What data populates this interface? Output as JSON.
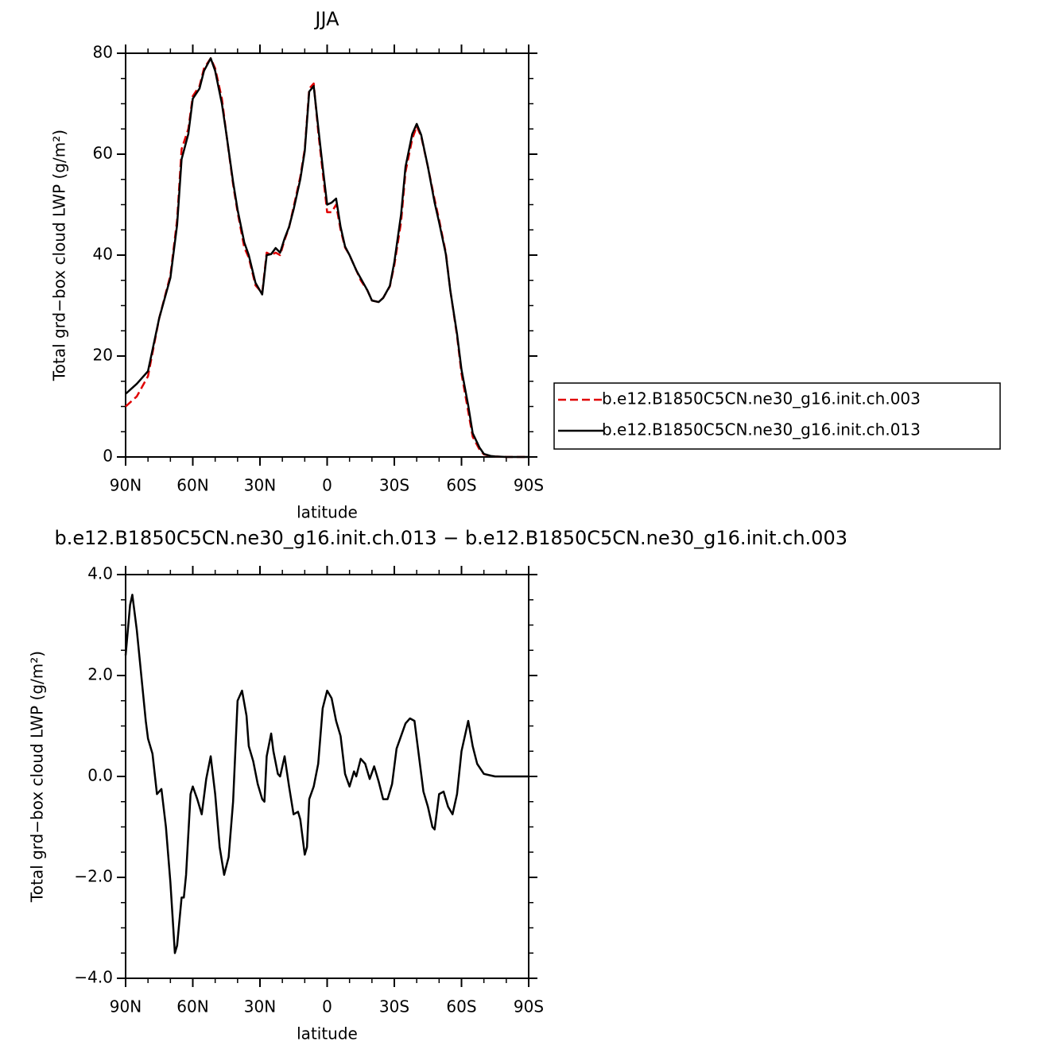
{
  "chart_data": [
    {
      "type": "line",
      "title": "JJA",
      "xlabel": "latitude",
      "ylabel": "Total grd−box cloud LWP (g/m²)",
      "x": [
        90,
        85,
        80,
        75,
        70,
        67,
        65,
        62,
        60,
        57,
        55,
        52,
        50,
        47,
        45,
        42,
        40,
        37,
        35,
        32,
        29,
        27,
        25,
        23,
        21,
        19,
        17,
        15,
        12,
        10,
        8,
        6,
        4,
        2,
        0,
        -2,
        -4,
        -6,
        -8,
        -10,
        -13,
        -15,
        -18,
        -20,
        -23,
        -25,
        -28,
        -30,
        -33,
        -35,
        -38,
        -40,
        -42,
        -45,
        -48,
        -50,
        -53,
        -55,
        -58,
        -60,
        -63,
        -65,
        -68,
        -70,
        -73,
        -75,
        -80,
        -85,
        -90
      ],
      "series": [
        {
          "name": "b.e12.B1850C5CN.ne30_g16.init.ch.003",
          "color": "#e00000",
          "style": "dashed",
          "values": [
            10,
            12,
            16,
            27.5,
            36,
            47,
            61,
            65,
            71.5,
            73.5,
            77,
            79,
            77,
            71,
            64,
            54,
            48.5,
            41.5,
            39.5,
            34,
            32.5,
            40.5,
            40,
            40.5,
            40,
            43,
            45.5,
            49.5,
            55.5,
            61,
            73,
            74,
            64.5,
            56.5,
            48.5,
            48.5,
            50,
            45,
            41.5,
            40,
            37,
            35,
            33,
            31,
            30.7,
            31.5,
            33.8,
            38,
            46.5,
            56.5,
            63,
            65.5,
            63.5,
            57.5,
            51,
            47,
            40.5,
            33,
            24,
            16.5,
            9,
            4,
            1.5,
            0.5,
            0.2,
            0.1,
            0,
            0,
            0
          ]
        },
        {
          "name": "b.e12.B1850C5CN.ne30_g16.init.ch.013",
          "color": "#000000",
          "style": "solid",
          "values": [
            12.5,
            14.5,
            17,
            27.5,
            35.5,
            46,
            59,
            64,
            71,
            73,
            76.5,
            79,
            76.5,
            70,
            64,
            54.5,
            49,
            42.5,
            40,
            34.5,
            32.2,
            40,
            40.2,
            41.4,
            40.5,
            43.3,
            45.6,
            49,
            55,
            60.6,
            72.4,
            73.5,
            65.4,
            57.5,
            50,
            50.4,
            51.2,
            45.6,
            41.7,
            40,
            37,
            35.4,
            33,
            31,
            30.7,
            31.5,
            33.9,
            38.6,
            48,
            57.5,
            64,
            66,
            63.8,
            57.5,
            50.4,
            46.5,
            40.2,
            33,
            24.4,
            17.3,
            10.2,
            4.7,
            1.9,
            0.6,
            0.2,
            0.1,
            0,
            0,
            0
          ]
        }
      ],
      "xlim": [
        90,
        -90
      ],
      "xticks": [
        {
          "value": 90,
          "label": "90N"
        },
        {
          "value": 60,
          "label": "60N"
        },
        {
          "value": 30,
          "label": "30N"
        },
        0,
        {
          "value": -30,
          "label": "30S"
        },
        {
          "value": -60,
          "label": "60S"
        },
        {
          "value": -90,
          "label": "90S"
        }
      ],
      "ylim": [
        0,
        80
      ],
      "yticks": [
        0,
        20,
        40,
        60,
        80
      ],
      "grid": false,
      "legend": "outside-right"
    },
    {
      "type": "line",
      "title": "b.e12.B1850C5CN.ne30_g16.init.ch.013 − b.e12.B1850C5CN.ne30_g16.init.ch.003",
      "xlabel": "latitude",
      "ylabel": "Total grd−box cloud LWP (g/m²)",
      "x": [
        90,
        88,
        87,
        85,
        83,
        81,
        80,
        78,
        76,
        75,
        74,
        72,
        70,
        68,
        67,
        65,
        64,
        63,
        61,
        60,
        58,
        56,
        54,
        52,
        50,
        48,
        46,
        44,
        42,
        40,
        38,
        36,
        35,
        33,
        31,
        29,
        28,
        27,
        25,
        24,
        22,
        21,
        19,
        17,
        15,
        13,
        12,
        10,
        9,
        8,
        6,
        4,
        2,
        0,
        -2,
        -4,
        -6,
        -8,
        -10,
        -12,
        -13,
        -15,
        -17,
        -19,
        -21,
        -23,
        -25,
        -27,
        -29,
        -31,
        -33,
        -35,
        -37,
        -39,
        -41,
        -43,
        -45,
        -47,
        -48,
        -50,
        -52,
        -54,
        -56,
        -58,
        -60,
        -62,
        -63,
        -65,
        -67,
        -70,
        -73,
        -75,
        -80,
        -85,
        -90
      ],
      "series": [
        {
          "color": "#000000",
          "style": "solid",
          "values": [
            2.4,
            3.4,
            3.6,
            2.9,
            2.0,
            1.1,
            0.75,
            0.45,
            -0.35,
            -0.3,
            -0.25,
            -1.0,
            -2.1,
            -3.5,
            -3.35,
            -2.4,
            -2.4,
            -1.95,
            -0.35,
            -0.2,
            -0.45,
            -0.75,
            -0.05,
            0.4,
            -0.35,
            -1.4,
            -1.95,
            -1.6,
            -0.5,
            1.5,
            1.7,
            1.2,
            0.6,
            0.3,
            -0.15,
            -0.45,
            -0.5,
            0.4,
            0.85,
            0.5,
            0.05,
            0.0,
            0.4,
            -0.2,
            -0.75,
            -0.7,
            -0.85,
            -1.55,
            -1.4,
            -0.45,
            -0.2,
            0.25,
            1.35,
            1.7,
            1.55,
            1.1,
            0.8,
            0.05,
            -0.2,
            0.1,
            0.0,
            0.35,
            0.25,
            -0.05,
            0.2,
            -0.1,
            -0.45,
            -0.45,
            -0.15,
            0.55,
            0.8,
            1.05,
            1.15,
            1.1,
            0.4,
            -0.3,
            -0.6,
            -1.0,
            -1.05,
            -0.35,
            -0.3,
            -0.6,
            -0.75,
            -0.35,
            0.5,
            0.9,
            1.1,
            0.6,
            0.25,
            0.05,
            0.02,
            0,
            0,
            0,
            0
          ]
        }
      ],
      "xlim": [
        90,
        -90
      ],
      "xticks": [
        {
          "value": 90,
          "label": "90N"
        },
        {
          "value": 60,
          "label": "60N"
        },
        {
          "value": 30,
          "label": "30N"
        },
        0,
        {
          "value": -30,
          "label": "30S"
        },
        {
          "value": -60,
          "label": "60S"
        },
        {
          "value": -90,
          "label": "90S"
        }
      ],
      "ylim": [
        -4,
        4
      ],
      "yticks": [
        {
          "value": -4,
          "label": "−4.0"
        },
        {
          "value": -2,
          "label": "−2.0"
        },
        {
          "value": 0,
          "label": "0.0"
        },
        {
          "value": 2,
          "label": "2.0"
        },
        {
          "value": 4,
          "label": "4.0"
        }
      ],
      "grid": false
    }
  ]
}
